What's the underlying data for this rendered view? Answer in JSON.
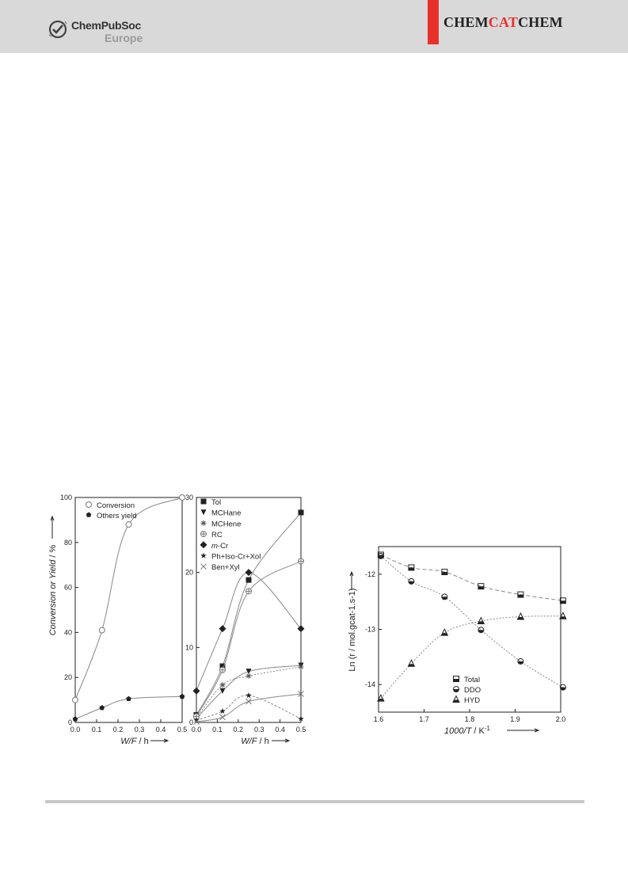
{
  "header": {
    "logo_line1": "ChemPubSoc",
    "logo_line2": "Europe",
    "journal_part1": "CHEM",
    "journal_part2": "CAT",
    "journal_part3": "CHEM",
    "brand_color": "#e8302b"
  },
  "chart_data": [
    {
      "type": "scatter",
      "panel": "left",
      "xlabel_italic": "W/F",
      "xlabel_unit": " / h",
      "ylabel": "Conversion or Yield / %",
      "xlim": [
        0.0,
        0.5
      ],
      "ylim": [
        0,
        100
      ],
      "x_ticks": [
        0.0,
        0.1,
        0.2,
        0.3,
        0.4,
        0.5
      ],
      "y_ticks": [
        0,
        20,
        40,
        60,
        80,
        100
      ],
      "legend_position": "top-left",
      "series": [
        {
          "name": "Conversion",
          "marker": "circle-open",
          "x": [
            0.0,
            0.125,
            0.25,
            0.5
          ],
          "y": [
            10,
            41,
            88,
            100
          ]
        },
        {
          "name": "Others yield",
          "marker": "pentagon-filled",
          "x": [
            0.0,
            0.125,
            0.25,
            0.5
          ],
          "y": [
            1.5,
            6.5,
            10.5,
            11.5
          ]
        }
      ]
    },
    {
      "type": "scatter",
      "panel": "middle",
      "xlabel_italic": "W/F",
      "xlabel_unit": " / h",
      "xlim": [
        0.0,
        0.5
      ],
      "ylim": [
        0,
        30
      ],
      "x_ticks": [
        0.0,
        0.1,
        0.2,
        0.3,
        0.4,
        0.5
      ],
      "y_ticks": [
        0,
        10,
        20,
        30
      ],
      "legend_position": "top-left",
      "series": [
        {
          "name": "Tol",
          "marker": "square-filled",
          "x": [
            0.0,
            0.125,
            0.25,
            0.5
          ],
          "y": [
            1.0,
            7.5,
            19,
            28
          ]
        },
        {
          "name": "MCHane",
          "marker": "tri-down-filled",
          "x": [
            0.0,
            0.125,
            0.25,
            0.5
          ],
          "y": [
            0.5,
            4.2,
            6.8,
            7.6
          ]
        },
        {
          "name": "MCHene",
          "marker": "star-asterisk",
          "x": [
            0.0,
            0.125,
            0.25,
            0.5
          ],
          "y": [
            0.6,
            5.0,
            6.2,
            7.4
          ]
        },
        {
          "name": "RC",
          "marker": "circle-plus",
          "x": [
            0.0,
            0.125,
            0.25,
            0.5
          ],
          "y": [
            0.8,
            7.0,
            17.5,
            21.5
          ]
        },
        {
          "name": "m-Cr",
          "marker": "diamond-filled",
          "x": [
            0.0,
            0.125,
            0.25,
            0.5
          ],
          "y": [
            4.2,
            12.5,
            20,
            12.5
          ]
        },
        {
          "name": "Ph+Iso-Cr+Xol",
          "marker": "star-filled",
          "x": [
            0.0,
            0.125,
            0.25,
            0.5
          ],
          "y": [
            0.3,
            1.5,
            3.6,
            0.5
          ]
        },
        {
          "name": "Ben+Xyl",
          "marker": "x-cross",
          "x": [
            0.0,
            0.125,
            0.25,
            0.5
          ],
          "y": [
            0.1,
            0.7,
            2.8,
            3.8
          ]
        }
      ]
    },
    {
      "type": "scatter",
      "panel": "right",
      "xlabel_italic": "1000/T",
      "xlabel_unit": " / K",
      "xlabel_sup": "-1",
      "ylabel": "Ln (r / mol.gcat-1.s-1)",
      "xlim": [
        1.6,
        2.0
      ],
      "ylim": [
        -14.5,
        -11.5
      ],
      "x_ticks": [
        1.6,
        1.7,
        1.8,
        1.9,
        2.0
      ],
      "y_ticks": [
        -12,
        -13,
        -14
      ],
      "legend_position": "bottom-center",
      "series": [
        {
          "name": "Total",
          "marker": "square-half",
          "x": [
            1.605,
            1.672,
            1.745,
            1.825,
            1.912,
            2.005
          ],
          "y": [
            -11.65,
            -11.88,
            -11.96,
            -12.22,
            -12.37,
            -12.48
          ]
        },
        {
          "name": "DDO",
          "marker": "circle-half",
          "x": [
            1.605,
            1.672,
            1.745,
            1.825,
            1.912,
            2.005
          ],
          "y": [
            -11.67,
            -12.13,
            -12.41,
            -13.01,
            -13.58,
            -14.05
          ]
        },
        {
          "name": "HYD",
          "marker": "triangle-half",
          "x": [
            1.605,
            1.672,
            1.745,
            1.825,
            1.912,
            2.005
          ],
          "y": [
            -14.25,
            -13.62,
            -13.06,
            -12.85,
            -12.77,
            -12.76
          ]
        }
      ]
    }
  ]
}
